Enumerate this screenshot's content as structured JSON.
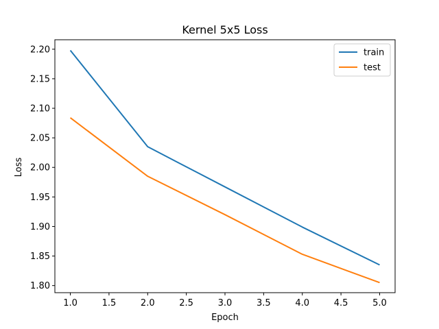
{
  "chart_data": {
    "type": "line",
    "title": "Kernel 5x5 Loss",
    "xlabel": "Epoch",
    "ylabel": "Loss",
    "x": [
      1.0,
      2.0,
      3.0,
      4.0,
      5.0
    ],
    "series": [
      {
        "name": "train",
        "color": "#1f77b4",
        "values": [
          2.198,
          2.035,
          1.967,
          1.899,
          1.835
        ]
      },
      {
        "name": "test",
        "color": "#ff7f0e",
        "values": [
          2.084,
          1.985,
          1.92,
          1.853,
          1.805
        ]
      }
    ],
    "xlim": [
      0.8,
      5.2
    ],
    "ylim": [
      1.788,
      2.216
    ],
    "xticks": [
      1.0,
      1.5,
      2.0,
      2.5,
      3.0,
      3.5,
      4.0,
      4.5,
      5.0
    ],
    "xtick_labels": [
      "1.0",
      "1.5",
      "2.0",
      "2.5",
      "3.0",
      "3.5",
      "4.0",
      "4.5",
      "5.0"
    ],
    "yticks": [
      1.8,
      1.85,
      1.9,
      1.95,
      2.0,
      2.05,
      2.1,
      2.15,
      2.2
    ],
    "ytick_labels": [
      "1.80",
      "1.85",
      "1.90",
      "1.95",
      "2.00",
      "2.05",
      "2.10",
      "2.15",
      "2.20"
    ],
    "grid": false,
    "legend_position": "top-right"
  }
}
